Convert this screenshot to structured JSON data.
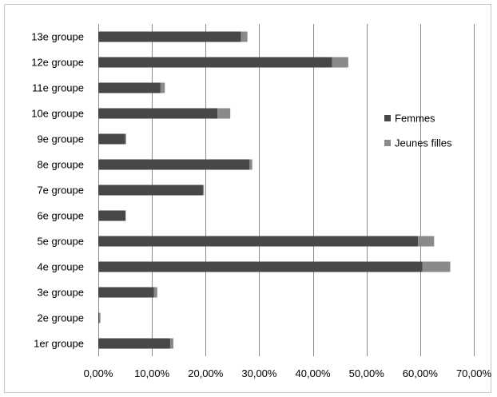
{
  "chart_data": {
    "type": "bar",
    "orientation": "horizontal",
    "stacked": true,
    "categories": [
      "1er groupe",
      "2e groupe",
      "3e groupe",
      "4e groupe",
      "5e groupe",
      "6e groupe",
      "7e groupe",
      "8e groupe",
      "9e groupe",
      "10e groupe",
      "11e groupe",
      "12e groupe",
      "13e groupe"
    ],
    "series": [
      {
        "name": "Femmes",
        "color": "#474747",
        "values": [
          0.134,
          0.002,
          0.104,
          0.604,
          0.596,
          0.051,
          0.195,
          0.282,
          0.05,
          0.222,
          0.116,
          0.436,
          0.266
        ]
      },
      {
        "name": "Jeunes filles",
        "color": "#8a8a8a",
        "values": [
          0.006,
          0.002,
          0.006,
          0.052,
          0.03,
          0.0,
          0.002,
          0.005,
          0.002,
          0.024,
          0.008,
          0.03,
          0.012
        ]
      }
    ],
    "xlim": [
      0,
      0.7
    ],
    "xticks": [
      0,
      0.1,
      0.2,
      0.3,
      0.4,
      0.5,
      0.6,
      0.7
    ],
    "xtick_labels": [
      "0,00%",
      "10,00%",
      "20,00%",
      "30,00%",
      "40,00%",
      "50,00%",
      "60,00%",
      "70,00%"
    ],
    "grid": true,
    "legend_position": "right",
    "title": "",
    "xlabel": "",
    "ylabel": ""
  }
}
